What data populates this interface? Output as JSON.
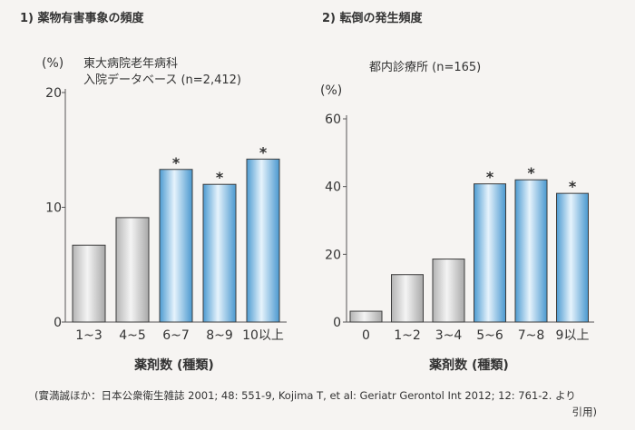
{
  "panels": [
    {
      "title": "1) 薬物有害事象の頻度",
      "note_lines": [
        "東大病院老年病科",
        "入院データベース (n=2,412)"
      ],
      "unit_label": "(%)"
    },
    {
      "title": "2) 転倒の発生頻度",
      "note_lines": [
        "都内診療所 (n=165)"
      ],
      "unit_label": "(%)"
    }
  ],
  "citation": {
    "line1": "(實満誠ほか：日本公衆衛生雑誌 2001; 48: 551-9, Kojima T, et al: Geriatr Gerontol Int 2012; 12: 761-2. より",
    "line2": "引用)"
  },
  "colors": {
    "gray_bar_top": "#f2f2f2",
    "gray_bar_bottom": "#b9b9b9",
    "blue_bar_top": "#e3f1fb",
    "blue_bar_bottom": "#5aa6d8",
    "axis": "#555555"
  },
  "chart_data": [
    {
      "type": "bar",
      "title": "1) 薬物有害事象の頻度",
      "xlabel": "薬剤数 (種類)",
      "ylabel": "(%)",
      "categories": [
        "1~3",
        "4~5",
        "6~7",
        "8~9",
        "10以上"
      ],
      "values": [
        6.7,
        9.1,
        13.3,
        12.0,
        14.2
      ],
      "significant": [
        false,
        false,
        true,
        true,
        true
      ],
      "significance_marker": "*",
      "ylim": [
        0,
        20
      ],
      "yticks": [
        0,
        10,
        20
      ],
      "grid": false,
      "highlight_color": "blue",
      "base_color": "gray"
    },
    {
      "type": "bar",
      "title": "2) 転倒の発生頻度",
      "xlabel": "薬剤数 (種類)",
      "ylabel": "(%)",
      "categories": [
        "0",
        "1~2",
        "3~4",
        "5~6",
        "7~8",
        "9以上"
      ],
      "values": [
        3.2,
        14.0,
        18.6,
        40.8,
        42.0,
        38.0
      ],
      "significant": [
        false,
        false,
        false,
        true,
        true,
        true
      ],
      "significance_marker": "*",
      "ylim": [
        0,
        60
      ],
      "yticks": [
        0,
        20,
        40,
        60
      ],
      "grid": false,
      "highlight_color": "blue",
      "base_color": "gray"
    }
  ]
}
